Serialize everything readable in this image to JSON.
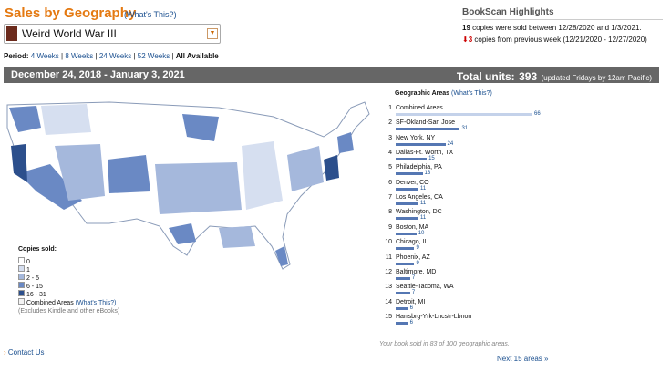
{
  "header": {
    "title": "Sales by Geography",
    "help_link": "(What's This?)"
  },
  "book_selector": {
    "selected": "Weird World War III"
  },
  "period": {
    "label": "Period:",
    "options": [
      "4 Weeks",
      "8 Weeks",
      "24 Weeks",
      "52 Weeks",
      "All Available"
    ]
  },
  "highlights": {
    "title": "BookScan Highlights",
    "sold_count": 19,
    "sold_text": "copies were sold between 12/28/2020 and 1/3/2021.",
    "change_count": 3,
    "change_text": "copies from previous week (12/21/2020 - 12/27/2020)"
  },
  "range_bar": {
    "dates": "December 24, 2018 - January 3, 2021",
    "total_label": "Total units:",
    "total": 393,
    "update_note": "(updated Fridays by 12am Pacific)"
  },
  "legend": {
    "title": "Copies sold:",
    "items": [
      "0",
      "1",
      "2 - 5",
      "6 - 15",
      "16 - 31"
    ],
    "combined": "Combined Areas",
    "combined_link": "(What's This?)",
    "note": "(Excludes Kindle and other eBooks)"
  },
  "areas": {
    "title": "Geographic Areas",
    "help_link": "(What's This?)",
    "rows": [
      {
        "rank": 1,
        "name": "Combined Areas",
        "units": 66
      },
      {
        "rank": 2,
        "name": "SF-Okland-San Jose",
        "units": 31
      },
      {
        "rank": 3,
        "name": "New York, NY",
        "units": 24
      },
      {
        "rank": 4,
        "name": "Dallas-Ft. Worth, TX",
        "units": 15
      },
      {
        "rank": 5,
        "name": "Philadelphia, PA",
        "units": 13
      },
      {
        "rank": 6,
        "name": "Denver, CO",
        "units": 11
      },
      {
        "rank": 7,
        "name": "Los Angeles, CA",
        "units": 11
      },
      {
        "rank": 8,
        "name": "Washington, DC",
        "units": 11
      },
      {
        "rank": 9,
        "name": "Boston, MA",
        "units": 10
      },
      {
        "rank": 10,
        "name": "Chicago, IL",
        "units": 9
      },
      {
        "rank": 11,
        "name": "Phoenix, AZ",
        "units": 9
      },
      {
        "rank": 12,
        "name": "Baltimore, MD",
        "units": 7
      },
      {
        "rank": 13,
        "name": "Seattle-Tacoma, WA",
        "units": 7
      },
      {
        "rank": 14,
        "name": "Detroit, MI",
        "units": 6
      },
      {
        "rank": 15,
        "name": "Harrsbrg-Yrk-Lncstr-Lbnon",
        "units": 6
      }
    ],
    "summary": "Your book sold in 83 of 100 geographic areas.",
    "next_link": "Next 15 areas »"
  },
  "footer": {
    "contact": "Contact Us"
  }
}
